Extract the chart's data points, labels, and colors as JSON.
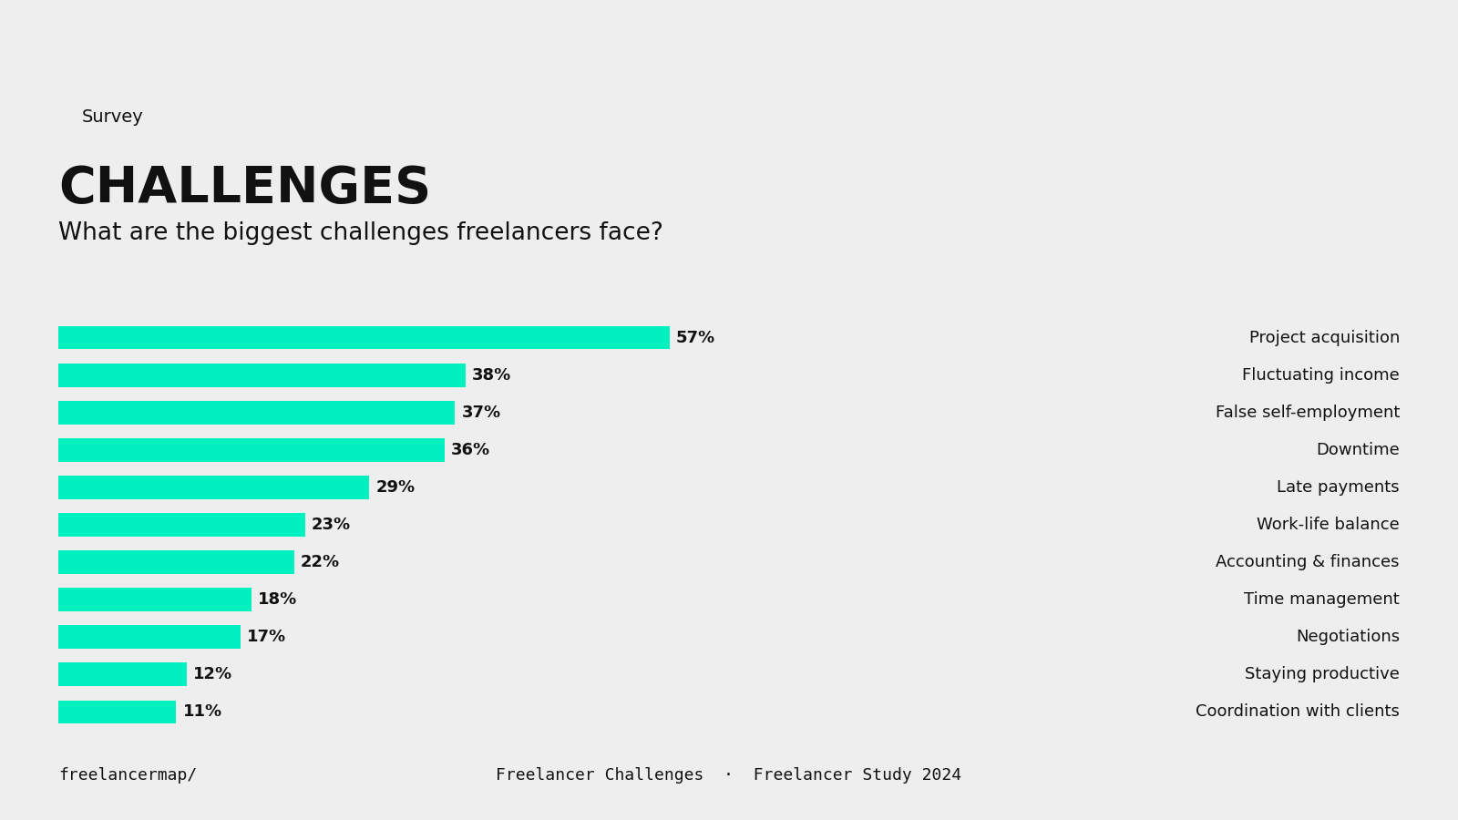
{
  "categories": [
    "Project acquisition",
    "Fluctuating income",
    "False self-employment",
    "Downtime",
    "Late payments",
    "Work-life balance",
    "Accounting & finances",
    "Time management",
    "Negotiations",
    "Staying productive",
    "Coordination with clients"
  ],
  "values": [
    57,
    38,
    37,
    36,
    29,
    23,
    22,
    18,
    17,
    12,
    11
  ],
  "bar_color": "#00f0c0",
  "background_color": "#eeeeee",
  "text_color": "#111111",
  "tag_text": "Survey",
  "tag_bg": "#ccff00",
  "title": "CHALLENGES",
  "subtitle": "What are the biggest challenges freelancers face?",
  "footer_left": "freelancermap/",
  "footer_center": "Freelancer Challenges  ·  Freelancer Study 2024",
  "xlim": [
    0,
    68
  ],
  "bar_height": 0.62,
  "bar_gap": 1.0
}
